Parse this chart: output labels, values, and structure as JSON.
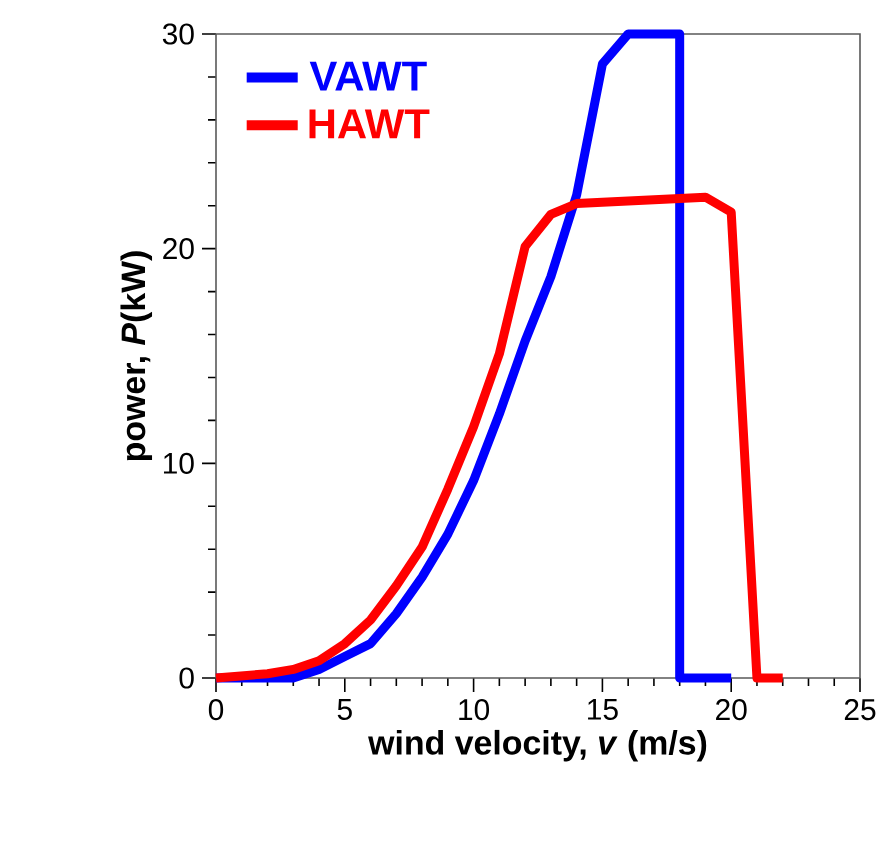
{
  "chart_data": {
    "type": "line",
    "xlabel": "wind velocity, *v* (m/s)",
    "ylabel": "power, *P*(kW)",
    "xlim": [
      0,
      25
    ],
    "ylim": [
      0,
      30
    ],
    "xticks": [
      0,
      5,
      10,
      15,
      20,
      25
    ],
    "yticks": [
      0,
      10,
      20,
      30
    ],
    "legend": "top left",
    "grid": false,
    "marker": "none",
    "line_style": "solid",
    "series": [
      {
        "name": "VAWT",
        "color": "#0000ff",
        "x": [
          0,
          3,
          4,
          5,
          6,
          7,
          8,
          9,
          10,
          11,
          12,
          13,
          14,
          15,
          16,
          18,
          18,
          20
        ],
        "values": [
          0,
          0,
          0.4,
          1.0,
          1.6,
          3.0,
          4.7,
          6.7,
          9.2,
          12.3,
          15.7,
          18.7,
          22.5,
          28.6,
          30,
          30,
          0,
          0
        ]
      },
      {
        "name": "HAWT",
        "color": "#ff0000",
        "x": [
          0,
          2,
          3,
          4,
          5,
          6,
          7,
          8,
          9,
          10,
          11,
          12,
          13,
          14,
          19,
          20,
          21,
          22
        ],
        "values": [
          0,
          0.2,
          0.4,
          0.8,
          1.6,
          2.7,
          4.3,
          6.1,
          8.8,
          11.7,
          15.1,
          20.1,
          21.6,
          22.1,
          22.4,
          21.7,
          0,
          0
        ]
      }
    ]
  }
}
